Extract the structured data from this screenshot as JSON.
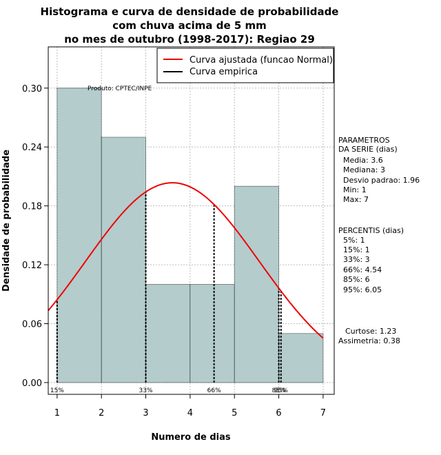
{
  "chart_data": {
    "type": "bar",
    "title_lines": [
      "Histograma e curva de densidade de probabilidade",
      "com chuva acima de 5 mm",
      "no mes de outubro (1998-2017): Regiao 29"
    ],
    "xlabel": "Numero de dias",
    "ylabel": "Densidade de probabilidade",
    "xlim": [
      0.8,
      7.25
    ],
    "ylim": [
      -0.012,
      0.342
    ],
    "x_ticks": [
      1,
      2,
      3,
      4,
      5,
      6,
      7
    ],
    "x_tick_labels": [
      "1",
      "2",
      "3",
      "4",
      "5",
      "6",
      "7"
    ],
    "y_ticks": [
      0.0,
      0.06,
      0.12,
      0.18,
      0.24,
      0.3
    ],
    "y_tick_labels": [
      "0.00",
      "0.06",
      "0.12",
      "0.18",
      "0.24",
      "0.30"
    ],
    "bins": [
      {
        "from": 1,
        "to": 2,
        "density": 0.3
      },
      {
        "from": 2,
        "to": 3,
        "density": 0.25
      },
      {
        "from": 3,
        "to": 4,
        "density": 0.1
      },
      {
        "from": 4,
        "to": 5,
        "density": 0.1
      },
      {
        "from": 5,
        "to": 6,
        "density": 0.2
      },
      {
        "from": 6,
        "to": 7,
        "density": 0.05
      }
    ],
    "bar_color": "#b4cccc",
    "grid": true,
    "normal_curve": {
      "label": "Curva ajustada (funcao Normal)",
      "mean": 3.6,
      "sd": 1.96,
      "color": "#ee0000"
    },
    "empirical_curve": {
      "label": "Curva empirica",
      "color": "#000000"
    },
    "legend_position": "top-right",
    "percentile_lines": [
      {
        "x": 1,
        "label": "15%"
      },
      {
        "x": 3,
        "label": "33%"
      },
      {
        "x": 4.54,
        "label": "66%"
      },
      {
        "x": 6,
        "label": "85%"
      },
      {
        "x": 6.05,
        "label": "95%"
      }
    ],
    "credit": "Produto: CPTEC/INPE",
    "parameters": {
      "title_lines": [
        "PARAMETROS",
        "DA SERIE (dias)"
      ],
      "lines": [
        "Media: 3.6",
        "Mediana: 3",
        "Desvio padrao: 1.96",
        "Min: 1",
        "Max: 7"
      ]
    },
    "percentiles": {
      "title": "PERCENTIS (dias)",
      "lines": [
        "5%: 1",
        "15%: 1",
        "33%: 3",
        "66%: 4.54",
        "85%: 6",
        "95%: 6.05"
      ]
    },
    "shape": {
      "lines": [
        "Curtose: 1.23",
        "Assimetria: 0.38"
      ]
    }
  }
}
